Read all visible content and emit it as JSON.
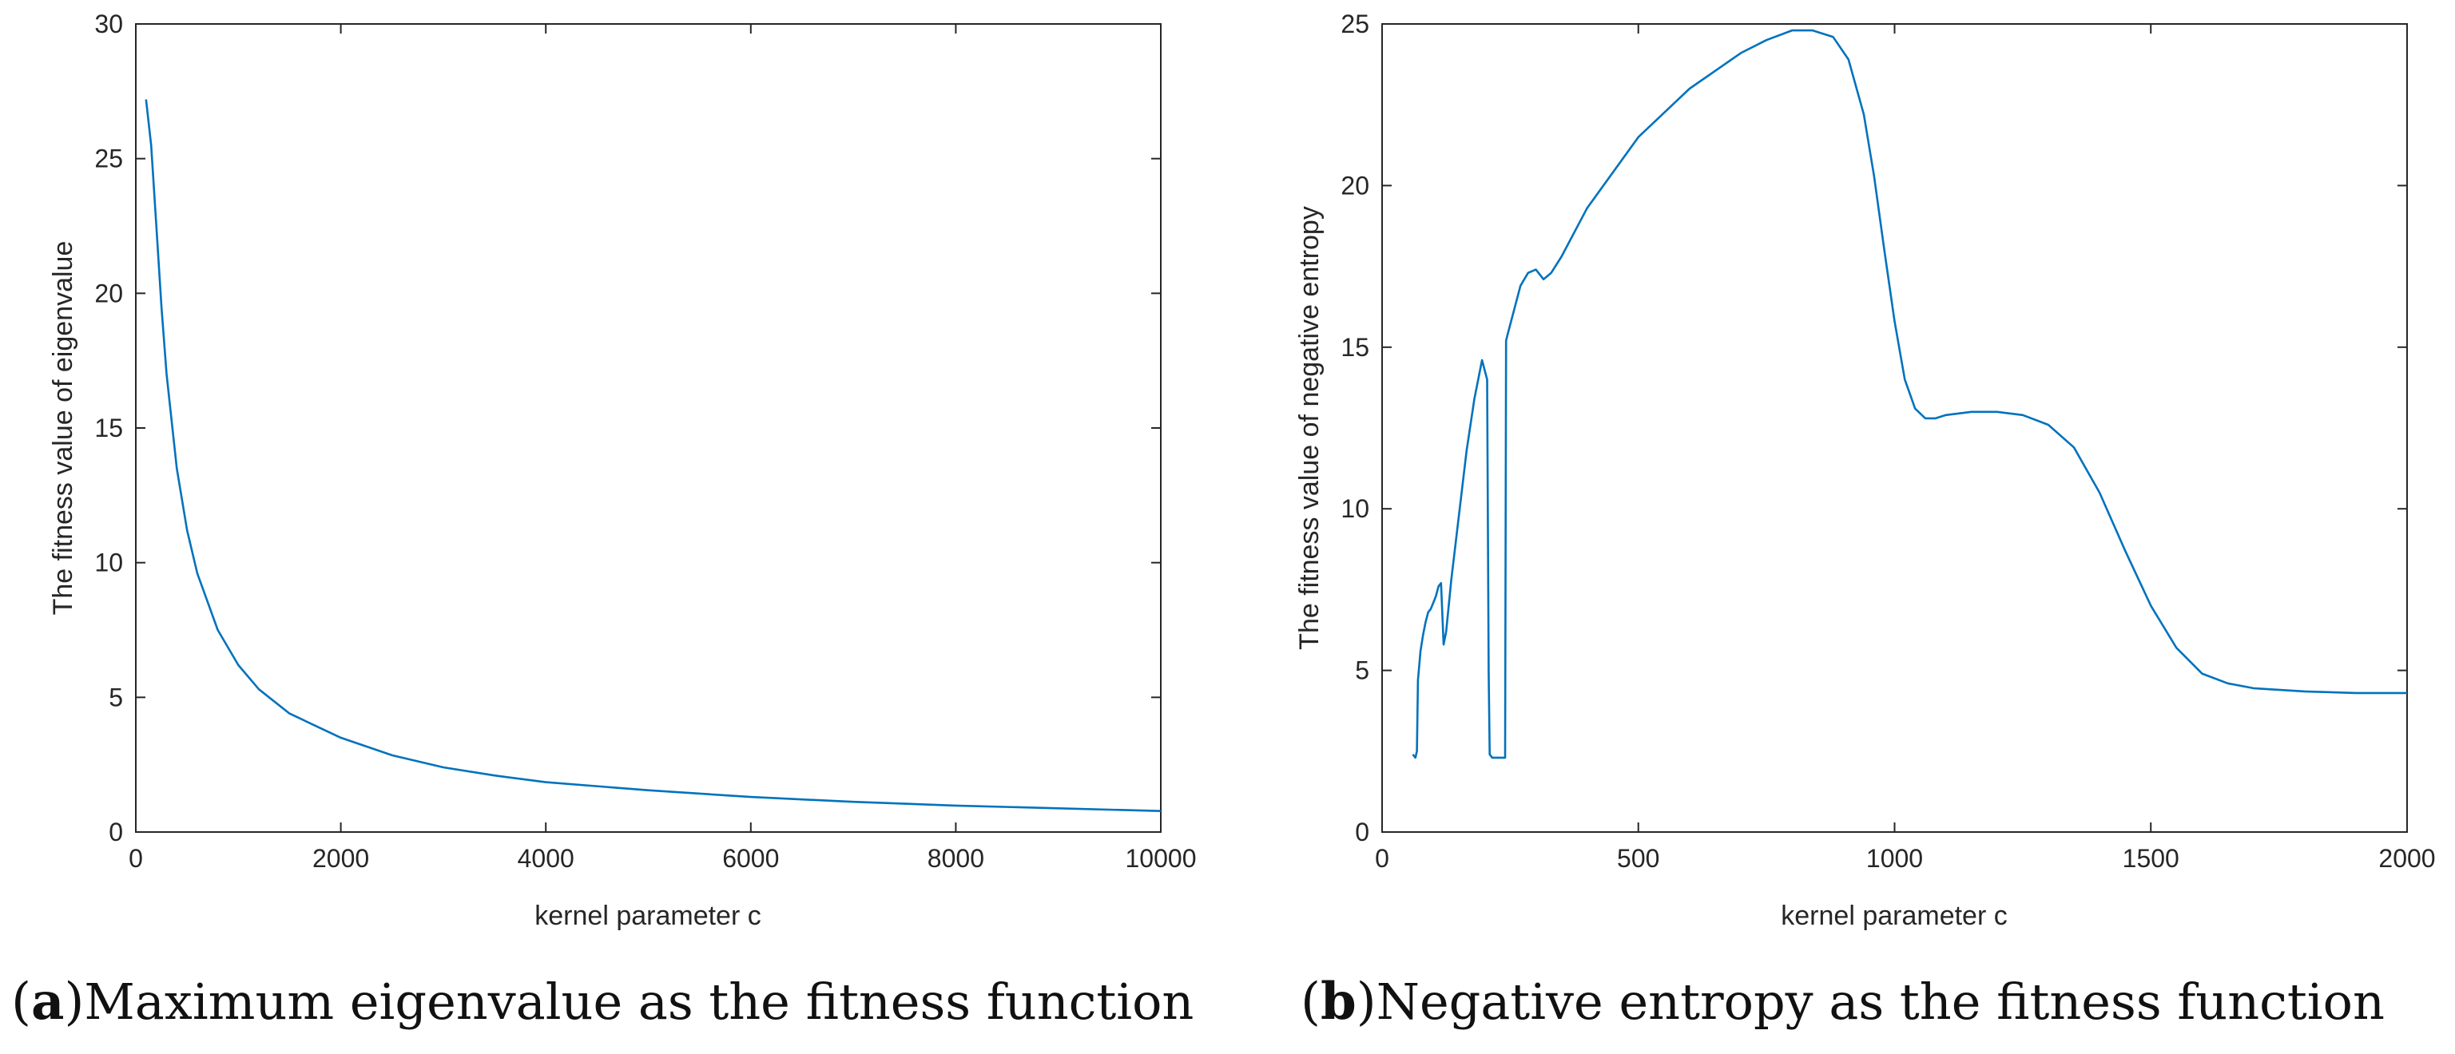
{
  "chart_data": [
    {
      "type": "line",
      "xlabel": "kernel parameter c",
      "ylabel": "The fitness value of eigenvalue",
      "xlim": [
        0,
        10000
      ],
      "ylim": [
        0,
        30
      ],
      "xticks": [
        0,
        2000,
        4000,
        6000,
        8000,
        10000
      ],
      "yticks": [
        0,
        5,
        10,
        15,
        20,
        25,
        30
      ],
      "caption_letter": "a",
      "caption_text": "Maximum eigenvalue as the fitness function",
      "series": [
        {
          "name": "eigenvalue",
          "color": "#0072BD",
          "x": [
            100,
            150,
            200,
            250,
            300,
            400,
            500,
            600,
            800,
            1000,
            1200,
            1500,
            2000,
            2500,
            3000,
            3500,
            4000,
            5000,
            6000,
            7000,
            8000,
            9000,
            10000
          ],
          "y": [
            27.2,
            25.5,
            22.5,
            19.5,
            17.0,
            13.5,
            11.2,
            9.6,
            7.5,
            6.2,
            5.3,
            4.4,
            3.5,
            2.85,
            2.4,
            2.1,
            1.85,
            1.55,
            1.3,
            1.12,
            0.98,
            0.88,
            0.78
          ]
        }
      ]
    },
    {
      "type": "line",
      "xlabel": "kernel parameter c",
      "ylabel": "The fitness value of negative entropy",
      "xlim": [
        0,
        2000
      ],
      "ylim": [
        0,
        25
      ],
      "xticks": [
        0,
        500,
        1000,
        1500,
        2000
      ],
      "yticks": [
        0,
        5,
        10,
        15,
        20,
        25
      ],
      "caption_letter": "b",
      "caption_text": "Negative entropy as the fitness function",
      "series": [
        {
          "name": "negative entropy",
          "color": "#0072BD",
          "x": [
            60,
            65,
            68,
            70,
            75,
            80,
            85,
            90,
            95,
            100,
            105,
            110,
            115,
            120,
            125,
            135,
            150,
            165,
            180,
            195,
            205,
            208,
            210,
            215,
            225,
            235,
            240,
            242,
            245,
            250,
            260,
            270,
            285,
            300,
            315,
            330,
            350,
            400,
            500,
            600,
            700,
            750,
            800,
            840,
            880,
            910,
            940,
            960,
            980,
            1000,
            1020,
            1040,
            1060,
            1080,
            1100,
            1150,
            1200,
            1250,
            1300,
            1350,
            1400,
            1450,
            1500,
            1550,
            1600,
            1650,
            1700,
            1800,
            1900,
            2000
          ],
          "y": [
            2.4,
            2.3,
            2.5,
            4.7,
            5.6,
            6.1,
            6.5,
            6.8,
            6.9,
            7.1,
            7.3,
            7.6,
            7.7,
            5.8,
            6.2,
            7.8,
            9.8,
            11.8,
            13.4,
            14.6,
            14.0,
            5.0,
            2.4,
            2.3,
            2.3,
            2.3,
            2.3,
            15.2,
            15.4,
            15.7,
            16.3,
            16.9,
            17.3,
            17.4,
            17.1,
            17.3,
            17.8,
            19.3,
            21.5,
            23.0,
            24.1,
            24.5,
            24.8,
            24.8,
            24.6,
            23.9,
            22.2,
            20.3,
            18.0,
            15.8,
            14.0,
            13.1,
            12.8,
            12.8,
            12.9,
            13.0,
            13.0,
            12.9,
            12.6,
            11.9,
            10.5,
            8.7,
            7.0,
            5.7,
            4.9,
            4.6,
            4.45,
            4.35,
            4.3,
            4.3
          ]
        }
      ]
    }
  ]
}
